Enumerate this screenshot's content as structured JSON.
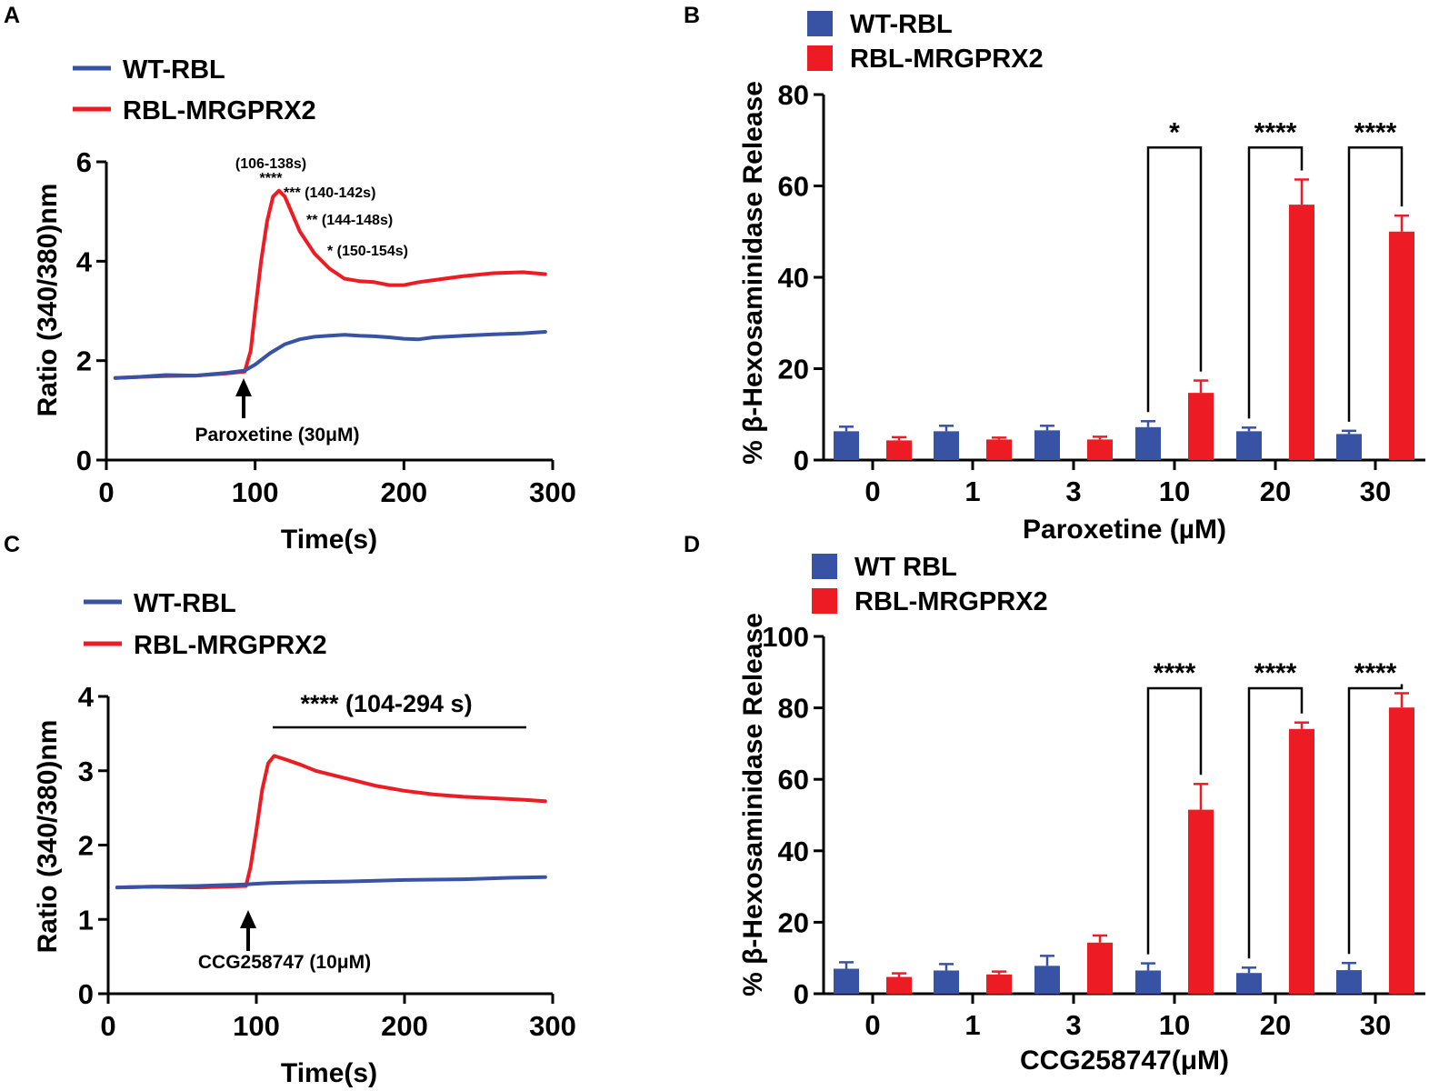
{
  "colors": {
    "wt": "#3953a4",
    "mrgprx2": "#ed1c24",
    "axis": "#000000"
  },
  "chart_data": [
    {
      "panel": "A",
      "type": "line",
      "xlabel": "Time(s)",
      "ylabel": "Ratio (340/380)nm",
      "xlim": [
        0,
        300
      ],
      "ylim": [
        0,
        6
      ],
      "xticks": [
        "0",
        "100",
        "200",
        "300"
      ],
      "yticks": [
        "0",
        "2",
        "4",
        "6"
      ],
      "grid": false,
      "legend": "top-left",
      "series": [
        {
          "name": "WT-RBL",
          "color": "#3953a4",
          "x": [
            6,
            20,
            40,
            60,
            80,
            93,
            100,
            110,
            120,
            130,
            140,
            150,
            160,
            170,
            180,
            190,
            200,
            210,
            220,
            240,
            260,
            280,
            295
          ],
          "y": [
            1.65,
            1.67,
            1.71,
            1.7,
            1.75,
            1.8,
            1.92,
            2.15,
            2.33,
            2.43,
            2.48,
            2.5,
            2.52,
            2.5,
            2.49,
            2.47,
            2.44,
            2.43,
            2.47,
            2.5,
            2.53,
            2.55,
            2.58
          ]
        },
        {
          "name": "RBL-MRGPRX2",
          "color": "#ed1c24",
          "x": [
            6,
            20,
            40,
            60,
            80,
            93,
            97,
            100,
            104,
            108,
            112,
            116,
            120,
            125,
            130,
            140,
            150,
            160,
            170,
            180,
            190,
            200,
            210,
            220,
            240,
            260,
            280,
            295
          ],
          "y": [
            1.65,
            1.67,
            1.69,
            1.7,
            1.74,
            1.78,
            2.2,
            3.0,
            4.0,
            4.8,
            5.3,
            5.42,
            5.3,
            4.95,
            4.6,
            4.15,
            3.85,
            3.65,
            3.6,
            3.58,
            3.52,
            3.52,
            3.58,
            3.62,
            3.7,
            3.76,
            3.78,
            3.74
          ]
        }
      ],
      "annotations": {
        "range_1": "(106-138s)",
        "stars_1": "****",
        "label_2": "*** (140-142s)",
        "label_3": "** (144-148s)",
        "label_4": "* (150-154s)",
        "arrow_label": "Paroxetine (30μM)"
      }
    },
    {
      "panel": "B",
      "type": "bar",
      "xlabel": "Paroxetine (µM)",
      "ylabel": "% β-Hexosaminidase Release",
      "categories": [
        "0",
        "1",
        "3",
        "10",
        "20",
        "30"
      ],
      "ylim": [
        0,
        80
      ],
      "yticks": [
        "0",
        "20",
        "40",
        "60",
        "80"
      ],
      "grid": false,
      "legend": "top-left",
      "series": [
        {
          "name": "WT-RBL",
          "color": "#3953a4",
          "values": [
            6.3,
            6.3,
            6.5,
            7.2,
            6.3,
            5.7
          ],
          "errors": [
            1.0,
            1.2,
            1.0,
            1.3,
            0.8,
            0.7
          ]
        },
        {
          "name": "RBL-MRGPRX2",
          "color": "#ed1c24",
          "values": [
            4.3,
            4.5,
            4.5,
            14.7,
            55.9,
            50.0
          ],
          "errors": [
            0.7,
            0.4,
            0.6,
            2.7,
            5.5,
            3.5
          ]
        }
      ],
      "significance": [
        "",
        "",
        "",
        "*",
        "****",
        "****"
      ]
    },
    {
      "panel": "C",
      "type": "line",
      "xlabel": "Time(s)",
      "ylabel": "Ratio (340/380)nm",
      "xlim": [
        0,
        300
      ],
      "ylim": [
        0,
        4
      ],
      "xticks": [
        "0",
        "100",
        "200",
        "300"
      ],
      "yticks": [
        "0",
        "1",
        "2",
        "3",
        "4"
      ],
      "grid": false,
      "legend": "top-left",
      "series": [
        {
          "name": "WT-RBL",
          "color": "#3953a4",
          "x": [
            6,
            30,
            60,
            93,
            100,
            110,
            130,
            160,
            200,
            240,
            270,
            295
          ],
          "y": [
            1.43,
            1.44,
            1.45,
            1.47,
            1.48,
            1.49,
            1.5,
            1.51,
            1.53,
            1.54,
            1.56,
            1.57
          ]
        },
        {
          "name": "RBL-MRGPRX2",
          "color": "#ed1c24",
          "x": [
            6,
            30,
            60,
            93,
            96,
            100,
            104,
            108,
            112,
            120,
            130,
            140,
            160,
            180,
            200,
            220,
            240,
            260,
            280,
            295
          ],
          "y": [
            1.43,
            1.44,
            1.43,
            1.45,
            1.7,
            2.2,
            2.75,
            3.1,
            3.2,
            3.15,
            3.08,
            3.0,
            2.9,
            2.8,
            2.73,
            2.68,
            2.65,
            2.63,
            2.61,
            2.59
          ]
        }
      ],
      "annotations": {
        "bracket_label": "**** (104-294 s)",
        "arrow_label": "CCG258747 (10μM)"
      }
    },
    {
      "panel": "D",
      "type": "bar",
      "xlabel": "CCG258747(μM)",
      "ylabel": "% β-Hexosaminidase Release",
      "categories": [
        "0",
        "1",
        "3",
        "10",
        "20",
        "30"
      ],
      "ylim": [
        0,
        100
      ],
      "yticks": [
        "0",
        "20",
        "40",
        "60",
        "80",
        "100"
      ],
      "grid": false,
      "legend": "top-left",
      "series": [
        {
          "name": "WT RBL",
          "color": "#3953a4",
          "values": [
            7.0,
            6.5,
            7.8,
            6.5,
            5.8,
            6.6
          ],
          "errors": [
            1.8,
            1.8,
            2.8,
            2.0,
            1.5,
            2.0
          ]
        },
        {
          "name": "RBL-MRGPRX2",
          "color": "#ed1c24",
          "values": [
            4.7,
            5.4,
            14.3,
            51.5,
            74.1,
            80.1
          ],
          "errors": [
            1.0,
            0.8,
            2.0,
            7.2,
            1.8,
            4.0
          ]
        }
      ],
      "significance": [
        "",
        "",
        "",
        "****",
        "****",
        "****"
      ]
    }
  ]
}
